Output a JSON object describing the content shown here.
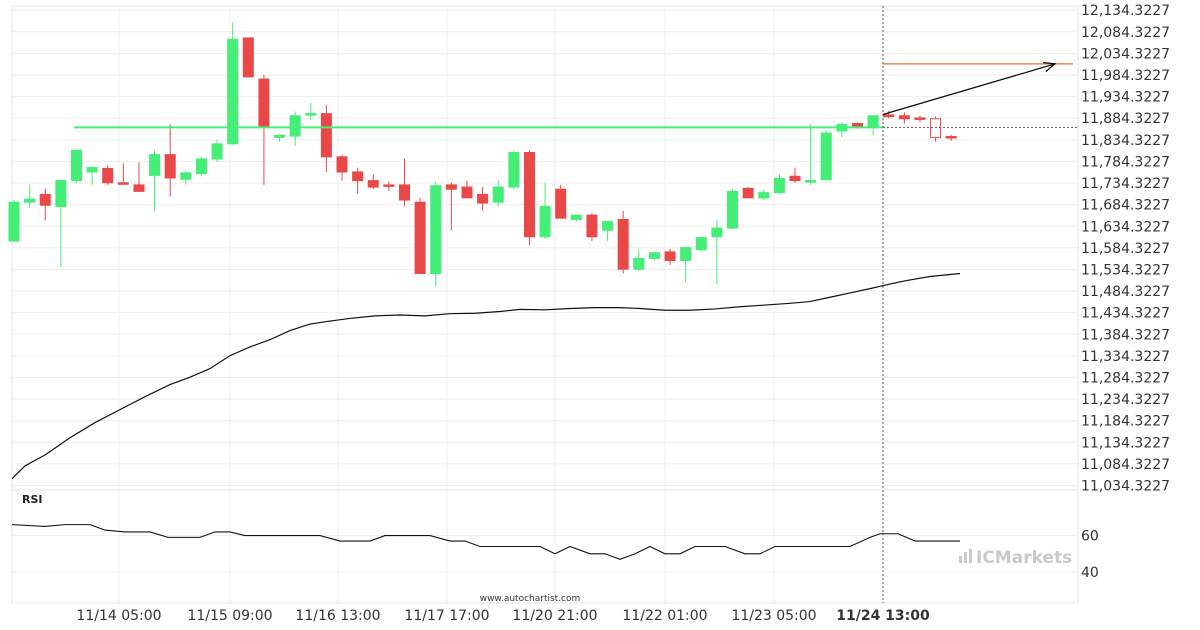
{
  "chart_data": {
    "type": "candlestick",
    "x": [
      "11/14 05:00",
      "11/15 09:00",
      "11/16 13:00",
      "11/17 17:00",
      "11/20 21:00",
      "11/22 01:00",
      "11/23 05:00",
      "11/24 13:00"
    ],
    "highlighted_x": "11/24 13:00",
    "y_ticks": [
      "12,134.3227",
      "12,084.3227",
      "12,034.3227",
      "11,984.3227",
      "11,934.3227",
      "11,884.3227",
      "11,834.3227",
      "11,784.3227",
      "11,734.3227",
      "11,684.3227",
      "11,634.3227",
      "11,584.3227",
      "11,534.3227",
      "11,484.3227",
      "11,434.3227",
      "11,384.3227",
      "11,334.3227",
      "11,284.3227",
      "11,234.3227",
      "11,184.3227",
      "11,134.3227",
      "11,084.3227",
      "11,034.3227"
    ],
    "ylim": [
      11024,
      12144
    ],
    "colors": {
      "up": "#44ee77",
      "down": "#e84848",
      "support_line": "#44ee77",
      "target_line": "#e07030",
      "ma": "#111111",
      "grid": "#eeeeee",
      "marker": "#555555"
    },
    "candles": [
      {
        "o": 11600,
        "h": 11695,
        "l": 11600,
        "c": 11690
      },
      {
        "o": 11690,
        "h": 11730,
        "l": 11678,
        "c": 11697
      },
      {
        "o": 11708,
        "h": 11722,
        "l": 11648,
        "c": 11683
      },
      {
        "o": 11680,
        "h": 11742,
        "l": 11540,
        "c": 11740
      },
      {
        "o": 11740,
        "h": 11810,
        "l": 11735,
        "c": 11810
      },
      {
        "o": 11760,
        "h": 11772,
        "l": 11730,
        "c": 11770
      },
      {
        "o": 11768,
        "h": 11775,
        "l": 11730,
        "c": 11735
      },
      {
        "o": 11735,
        "h": 11780,
        "l": 11732,
        "c": 11732
      },
      {
        "o": 11730,
        "h": 11782,
        "l": 11720,
        "c": 11715
      },
      {
        "o": 11752,
        "h": 11810,
        "l": 11670,
        "c": 11800
      },
      {
        "o": 11800,
        "h": 11870,
        "l": 11703,
        "c": 11746
      },
      {
        "o": 11743,
        "h": 11762,
        "l": 11730,
        "c": 11758
      },
      {
        "o": 11756,
        "h": 11795,
        "l": 11750,
        "c": 11790
      },
      {
        "o": 11790,
        "h": 11835,
        "l": 11783,
        "c": 11825
      },
      {
        "o": 11825,
        "h": 12106,
        "l": 11822,
        "c": 12067
      },
      {
        "o": 12070,
        "h": 12070,
        "l": 11980,
        "c": 11980
      },
      {
        "o": 11975,
        "h": 11985,
        "l": 11730,
        "c": 11865
      },
      {
        "o": 11840,
        "h": 11846,
        "l": 11830,
        "c": 11845
      },
      {
        "o": 11843,
        "h": 11900,
        "l": 11820,
        "c": 11890
      },
      {
        "o": 11895,
        "h": 11920,
        "l": 11880,
        "c": 11895
      },
      {
        "o": 11895,
        "h": 11915,
        "l": 11760,
        "c": 11795
      },
      {
        "o": 11795,
        "h": 11800,
        "l": 11740,
        "c": 11760
      },
      {
        "o": 11760,
        "h": 11770,
        "l": 11710,
        "c": 11740
      },
      {
        "o": 11740,
        "h": 11755,
        "l": 11720,
        "c": 11725
      },
      {
        "o": 11730,
        "h": 11738,
        "l": 11716,
        "c": 11728
      },
      {
        "o": 11730,
        "h": 11790,
        "l": 11680,
        "c": 11695
      },
      {
        "o": 11690,
        "h": 11700,
        "l": 11525,
        "c": 11525
      },
      {
        "o": 11525,
        "h": 11738,
        "l": 11495,
        "c": 11728
      },
      {
        "o": 11730,
        "h": 11735,
        "l": 11625,
        "c": 11720
      },
      {
        "o": 11725,
        "h": 11740,
        "l": 11700,
        "c": 11700
      },
      {
        "o": 11708,
        "h": 11725,
        "l": 11670,
        "c": 11688
      },
      {
        "o": 11690,
        "h": 11740,
        "l": 11680,
        "c": 11725
      },
      {
        "o": 11725,
        "h": 11810,
        "l": 11720,
        "c": 11805
      },
      {
        "o": 11805,
        "h": 11810,
        "l": 11590,
        "c": 11610
      },
      {
        "o": 11610,
        "h": 11735,
        "l": 11605,
        "c": 11680
      },
      {
        "o": 11720,
        "h": 11730,
        "l": 11655,
        "c": 11653
      },
      {
        "o": 11650,
        "h": 11655,
        "l": 11645,
        "c": 11660
      },
      {
        "o": 11660,
        "h": 11665,
        "l": 11600,
        "c": 11610
      },
      {
        "o": 11625,
        "h": 11645,
        "l": 11600,
        "c": 11645
      },
      {
        "o": 11650,
        "h": 11670,
        "l": 11525,
        "c": 11535
      },
      {
        "o": 11535,
        "h": 11580,
        "l": 11530,
        "c": 11560
      },
      {
        "o": 11560,
        "h": 11575,
        "l": 11555,
        "c": 11573
      },
      {
        "o": 11575,
        "h": 11582,
        "l": 11545,
        "c": 11555
      },
      {
        "o": 11555,
        "h": 11585,
        "l": 11505,
        "c": 11585
      },
      {
        "o": 11580,
        "h": 11608,
        "l": 11575,
        "c": 11608
      },
      {
        "o": 11610,
        "h": 11650,
        "l": 11500,
        "c": 11630
      },
      {
        "o": 11630,
        "h": 11720,
        "l": 11628,
        "c": 11715
      },
      {
        "o": 11722,
        "h": 11725,
        "l": 11700,
        "c": 11700
      },
      {
        "o": 11700,
        "h": 11720,
        "l": 11695,
        "c": 11712
      },
      {
        "o": 11712,
        "h": 11755,
        "l": 11710,
        "c": 11745
      },
      {
        "o": 11750,
        "h": 11770,
        "l": 11735,
        "c": 11740
      },
      {
        "o": 11740,
        "h": 11870,
        "l": 11730,
        "c": 11740
      },
      {
        "o": 11742,
        "h": 11855,
        "l": 11740,
        "c": 11850
      },
      {
        "o": 11855,
        "h": 11875,
        "l": 11840,
        "c": 11870
      },
      {
        "o": 11872,
        "h": 11875,
        "l": 11860,
        "c": 11864
      },
      {
        "o": 11865,
        "h": 11890,
        "l": 11845,
        "c": 11890
      },
      {
        "o": 11892,
        "h": 11902,
        "l": 11884,
        "c": 11888
      },
      {
        "o": 11890,
        "h": 11898,
        "l": 11872,
        "c": 11883
      },
      {
        "o": 11885,
        "h": 11890,
        "l": 11875,
        "c": 11883
      },
      {
        "o": 11883,
        "h": 11888,
        "l": 11830,
        "c": 11840,
        "future": true
      },
      {
        "o": 11842,
        "h": 11846,
        "l": 11832,
        "c": 11840
      }
    ],
    "support_level": 11863,
    "support_x_range": [
      74,
      1078
    ],
    "target_level": 12010,
    "target_x_start": 883,
    "projection": {
      "from": [
        883,
        11893
      ],
      "to": [
        1055,
        12010
      ]
    },
    "moving_average": [
      [
        12,
        11050
      ],
      [
        25,
        11080
      ],
      [
        45,
        11105
      ],
      [
        70,
        11145
      ],
      [
        95,
        11180
      ],
      [
        120,
        11210
      ],
      [
        145,
        11240
      ],
      [
        170,
        11268
      ],
      [
        190,
        11285
      ],
      [
        210,
        11305
      ],
      [
        230,
        11335
      ],
      [
        250,
        11355
      ],
      [
        270,
        11372
      ],
      [
        290,
        11393
      ],
      [
        310,
        11408
      ],
      [
        330,
        11415
      ],
      [
        350,
        11421
      ],
      [
        375,
        11427
      ],
      [
        400,
        11429
      ],
      [
        425,
        11427
      ],
      [
        450,
        11432
      ],
      [
        475,
        11433
      ],
      [
        500,
        11437
      ],
      [
        520,
        11442
      ],
      [
        545,
        11441
      ],
      [
        570,
        11444
      ],
      [
        595,
        11446
      ],
      [
        620,
        11446
      ],
      [
        640,
        11444
      ],
      [
        665,
        11440
      ],
      [
        690,
        11440
      ],
      [
        715,
        11443
      ],
      [
        740,
        11448
      ],
      [
        765,
        11452
      ],
      [
        790,
        11456
      ],
      [
        810,
        11460
      ],
      [
        830,
        11470
      ],
      [
        850,
        11480
      ],
      [
        870,
        11490
      ],
      [
        885,
        11498
      ],
      [
        905,
        11508
      ],
      [
        930,
        11518
      ],
      [
        960,
        11525
      ]
    ],
    "rsi": {
      "label": "RSI",
      "ticks": [
        "60",
        "40"
      ],
      "tick_values": [
        60,
        40
      ],
      "ylim": [
        23,
        85
      ],
      "values": [
        [
          12,
          66
        ],
        [
          45,
          65
        ],
        [
          65,
          66
        ],
        [
          90,
          66
        ],
        [
          105,
          63
        ],
        [
          125,
          62
        ],
        [
          150,
          62
        ],
        [
          168,
          59
        ],
        [
          200,
          59
        ],
        [
          215,
          62
        ],
        [
          230,
          62
        ],
        [
          245,
          60
        ],
        [
          270,
          60
        ],
        [
          320,
          60
        ],
        [
          340,
          57
        ],
        [
          370,
          57
        ],
        [
          385,
          60
        ],
        [
          430,
          60
        ],
        [
          450,
          57
        ],
        [
          465,
          57
        ],
        [
          480,
          54
        ],
        [
          515,
          54
        ],
        [
          540,
          54
        ],
        [
          555,
          50
        ],
        [
          570,
          54
        ],
        [
          590,
          50
        ],
        [
          605,
          50
        ],
        [
          620,
          47
        ],
        [
          635,
          50
        ],
        [
          650,
          54
        ],
        [
          665,
          50
        ],
        [
          680,
          50
        ],
        [
          695,
          54
        ],
        [
          725,
          54
        ],
        [
          745,
          50
        ],
        [
          760,
          50
        ],
        [
          775,
          54
        ],
        [
          850,
          54
        ],
        [
          870,
          59
        ],
        [
          880,
          61
        ],
        [
          898,
          61
        ],
        [
          915,
          57
        ],
        [
          960,
          57
        ]
      ]
    },
    "watermark": "www.autochartist.com",
    "brand": "ICMarkets"
  }
}
